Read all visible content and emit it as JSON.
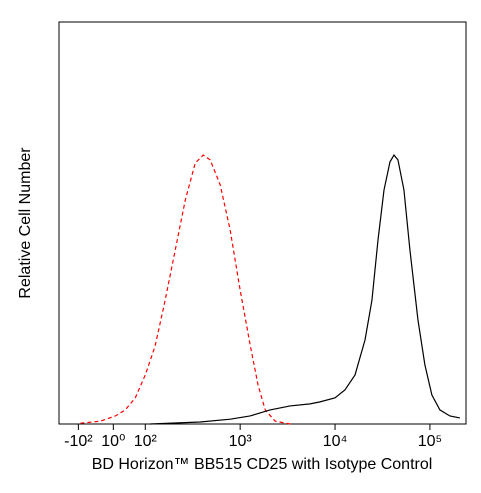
{
  "chart_data": {
    "type": "line",
    "xlabel": "BD Horizon™ BB515 CD25 with Isotype Control",
    "ylabel": "Relative Cell Number",
    "xscale": "biexponential",
    "xlim": [
      -160,
      240000
    ],
    "ylim": [
      0,
      100
    ],
    "xticks": [
      {
        "value": -100,
        "label": "-10²"
      },
      {
        "value": 1,
        "label": "10⁰"
      },
      {
        "value": 100,
        "label": "10²"
      },
      {
        "value": 1000,
        "label": "10³"
      },
      {
        "value": 10000,
        "label": "10⁴"
      },
      {
        "value": 100000,
        "label": "10⁵"
      }
    ],
    "series": [
      {
        "color": "#ff0000",
        "dash": true,
        "x": [
          -79,
          -9.5,
          2.4,
          12,
          35,
          100,
          127,
          162,
          207,
          264,
          336,
          408,
          483,
          616,
          784,
          1000,
          1274,
          1544,
          1838,
          2340,
          3380
        ],
        "values": [
          0.2,
          0.7,
          2,
          3.5,
          6.5,
          12.2,
          19.4,
          30.8,
          43.3,
          55.7,
          64.9,
          66.9,
          65.7,
          59.5,
          48.3,
          33.3,
          19.7,
          9.7,
          3.5,
          0.7,
          0
        ]
      },
      {
        "color": "#000000",
        "dash": false,
        "x": [
          113,
          379,
          785,
          1274,
          2069,
          3360,
          5456,
          6952,
          10000,
          12740,
          16240,
          20690,
          24490,
          28370,
          32810,
          37930,
          41800,
          46030,
          53240,
          61540,
          74800,
          88530,
          104900,
          127400,
          162400,
          207000
        ],
        "values": [
          0,
          0.5,
          1.2,
          2,
          3.5,
          4.5,
          5,
          5.5,
          6.5,
          8.5,
          12.2,
          20.9,
          30.8,
          45.8,
          58.2,
          65.2,
          66.9,
          65.7,
          58.2,
          43.3,
          25.9,
          14.7,
          7.2,
          3.5,
          2,
          1.5
        ]
      }
    ]
  }
}
